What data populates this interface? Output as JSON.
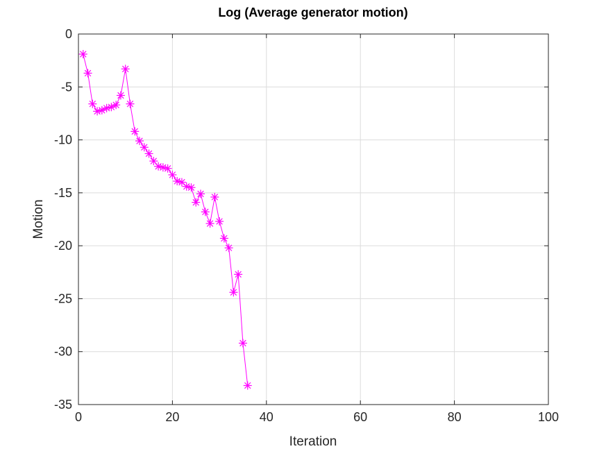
{
  "chart_data": {
    "type": "line",
    "title": "Log (Average generator motion)",
    "xlabel": "Iteration",
    "ylabel": "Motion",
    "xlim": [
      0,
      100
    ],
    "ylim": [
      -35,
      0
    ],
    "xticks": [
      0,
      20,
      40,
      60,
      80,
      100
    ],
    "yticks": [
      0,
      -5,
      -10,
      -15,
      -20,
      -25,
      -30,
      -35
    ],
    "grid": true,
    "series": [
      {
        "name": "motion",
        "color": "#ff00ff",
        "marker": "asterisk",
        "x": [
          1,
          2,
          3,
          4,
          5,
          6,
          7,
          8,
          9,
          10,
          11,
          12,
          13,
          14,
          15,
          16,
          17,
          18,
          19,
          20,
          21,
          22,
          23,
          24,
          25,
          26,
          27,
          28,
          29,
          30,
          31,
          32,
          33,
          34,
          35,
          36
        ],
        "y": [
          -1.9,
          -3.7,
          -6.6,
          -7.3,
          -7.2,
          -7.0,
          -6.9,
          -6.7,
          -5.8,
          -3.3,
          -6.6,
          -9.2,
          -10.1,
          -10.7,
          -11.3,
          -12.0,
          -12.5,
          -12.6,
          -12.7,
          -13.3,
          -13.9,
          -14.0,
          -14.4,
          -14.5,
          -15.9,
          -15.1,
          -16.8,
          -17.9,
          -15.4,
          -17.7,
          -19.3,
          -20.2,
          -24.4,
          -22.7,
          -29.2,
          -33.2
        ]
      }
    ]
  }
}
